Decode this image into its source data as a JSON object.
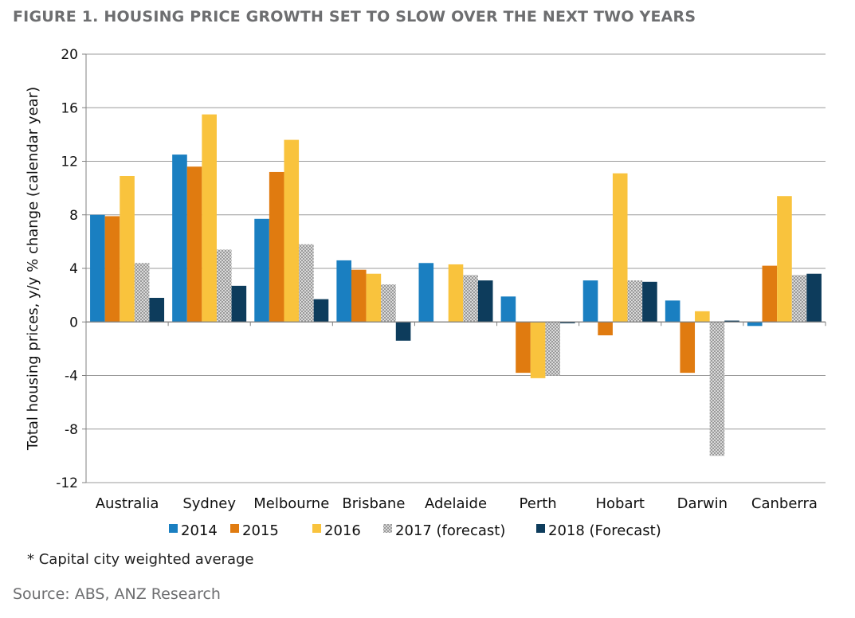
{
  "figure": {
    "title": "FIGURE 1. HOUSING PRICE GROWTH SET TO SLOW OVER THE NEXT TWO YEARS",
    "note": "* Capital city weighted average",
    "source": "Source: ABS, ANZ Research"
  },
  "chart_data": {
    "type": "bar",
    "title": "FIGURE 1. HOUSING PRICE GROWTH SET TO SLOW OVER THE NEXT TWO YEARS",
    "xlabel": "",
    "ylabel": "Total housing prices, y/y % change (calendar year)",
    "ylim": [
      -12,
      20
    ],
    "yticks": [
      20,
      16,
      12,
      8,
      4,
      0,
      -4,
      -8,
      -12
    ],
    "grid": true,
    "legend_position": "bottom",
    "categories": [
      "Australia",
      "Sydney",
      "Melbourne",
      "Brisbane",
      "Adelaide",
      "Perth",
      "Hobart",
      "Darwin",
      "Canberra"
    ],
    "series": [
      {
        "name": "2014",
        "color": "#1a7fc1",
        "pattern": "solid",
        "values": [
          8.0,
          12.5,
          7.7,
          4.6,
          4.4,
          1.9,
          3.1,
          1.6,
          -0.3
        ]
      },
      {
        "name": "2015",
        "color": "#e07b10",
        "pattern": "solid",
        "values": [
          7.9,
          11.6,
          11.2,
          3.9,
          0.0,
          -3.8,
          -1.0,
          -3.8,
          4.2
        ]
      },
      {
        "name": "2016",
        "color": "#f9c33d",
        "pattern": "solid",
        "values": [
          10.9,
          15.5,
          13.6,
          3.6,
          4.3,
          -4.2,
          11.1,
          0.8,
          9.4
        ]
      },
      {
        "name": "2017 (forecast)",
        "color": "#c0c0c0",
        "pattern": "dotted",
        "values": [
          4.4,
          5.4,
          5.8,
          2.8,
          3.5,
          -4.0,
          3.1,
          -10.0,
          3.5
        ]
      },
      {
        "name": "2018 (Forecast)",
        "color": "#0d3c5c",
        "pattern": "solid",
        "values": [
          1.8,
          2.7,
          1.7,
          -1.4,
          3.1,
          -0.1,
          3.0,
          0.1,
          3.6
        ]
      }
    ]
  }
}
